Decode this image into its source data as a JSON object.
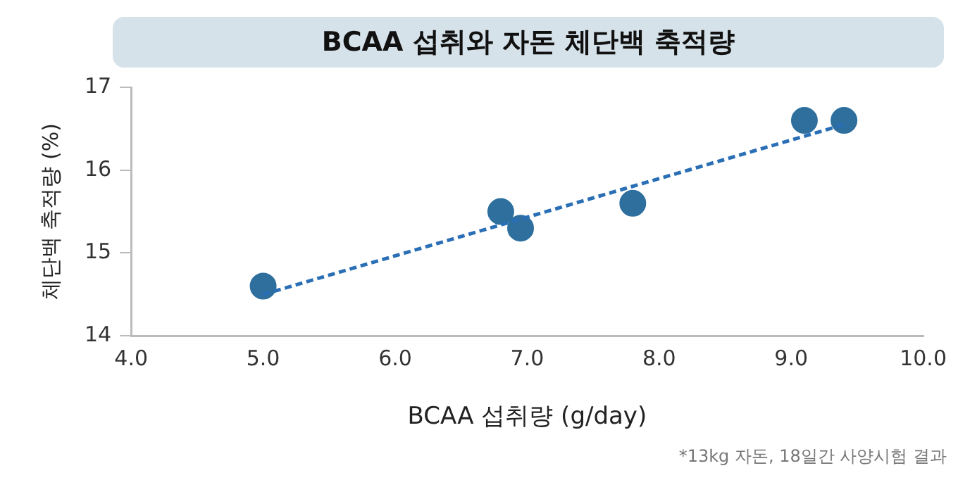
{
  "chart_data": {
    "type": "scatter",
    "title": "BCAA 섭취와 자돈 체단백 축적량",
    "xlabel": "BCAA 섭취량 (g/day)",
    "ylabel": "체단백 축적량 (%)",
    "annotations": [
      "*13kg 자돈, 18일간 사양시험 결과"
    ],
    "x": [
      5.0,
      6.8,
      6.95,
      7.8,
      9.1,
      9.4
    ],
    "series": [
      {
        "color": "#2e6f9e",
        "values": [
          14.6,
          15.5,
          15.3,
          15.6,
          16.6,
          16.6
        ],
        "marker": "circle"
      },
      {
        "type": "line",
        "color": "#2a6fb5",
        "x": [
          5.0,
          9.4
        ],
        "values": [
          14.5,
          16.55
        ],
        "line_style": "dashed",
        "marker": "none"
      }
    ],
    "xlim": [
      4.0,
      10.0
    ],
    "xticks": [
      {
        "value": 4,
        "label": "4.0"
      },
      {
        "value": 5,
        "label": "5.0"
      },
      {
        "value": 6,
        "label": "6.0"
      },
      {
        "value": 7,
        "label": "7.0"
      },
      {
        "value": 8,
        "label": "8.0"
      },
      {
        "value": 9,
        "label": "9.0"
      },
      {
        "value": 10,
        "label": "10.0"
      }
    ],
    "ylim": [
      14,
      17
    ],
    "yticks": [
      14,
      15,
      16,
      17
    ],
    "grid": false,
    "legend": false
  }
}
